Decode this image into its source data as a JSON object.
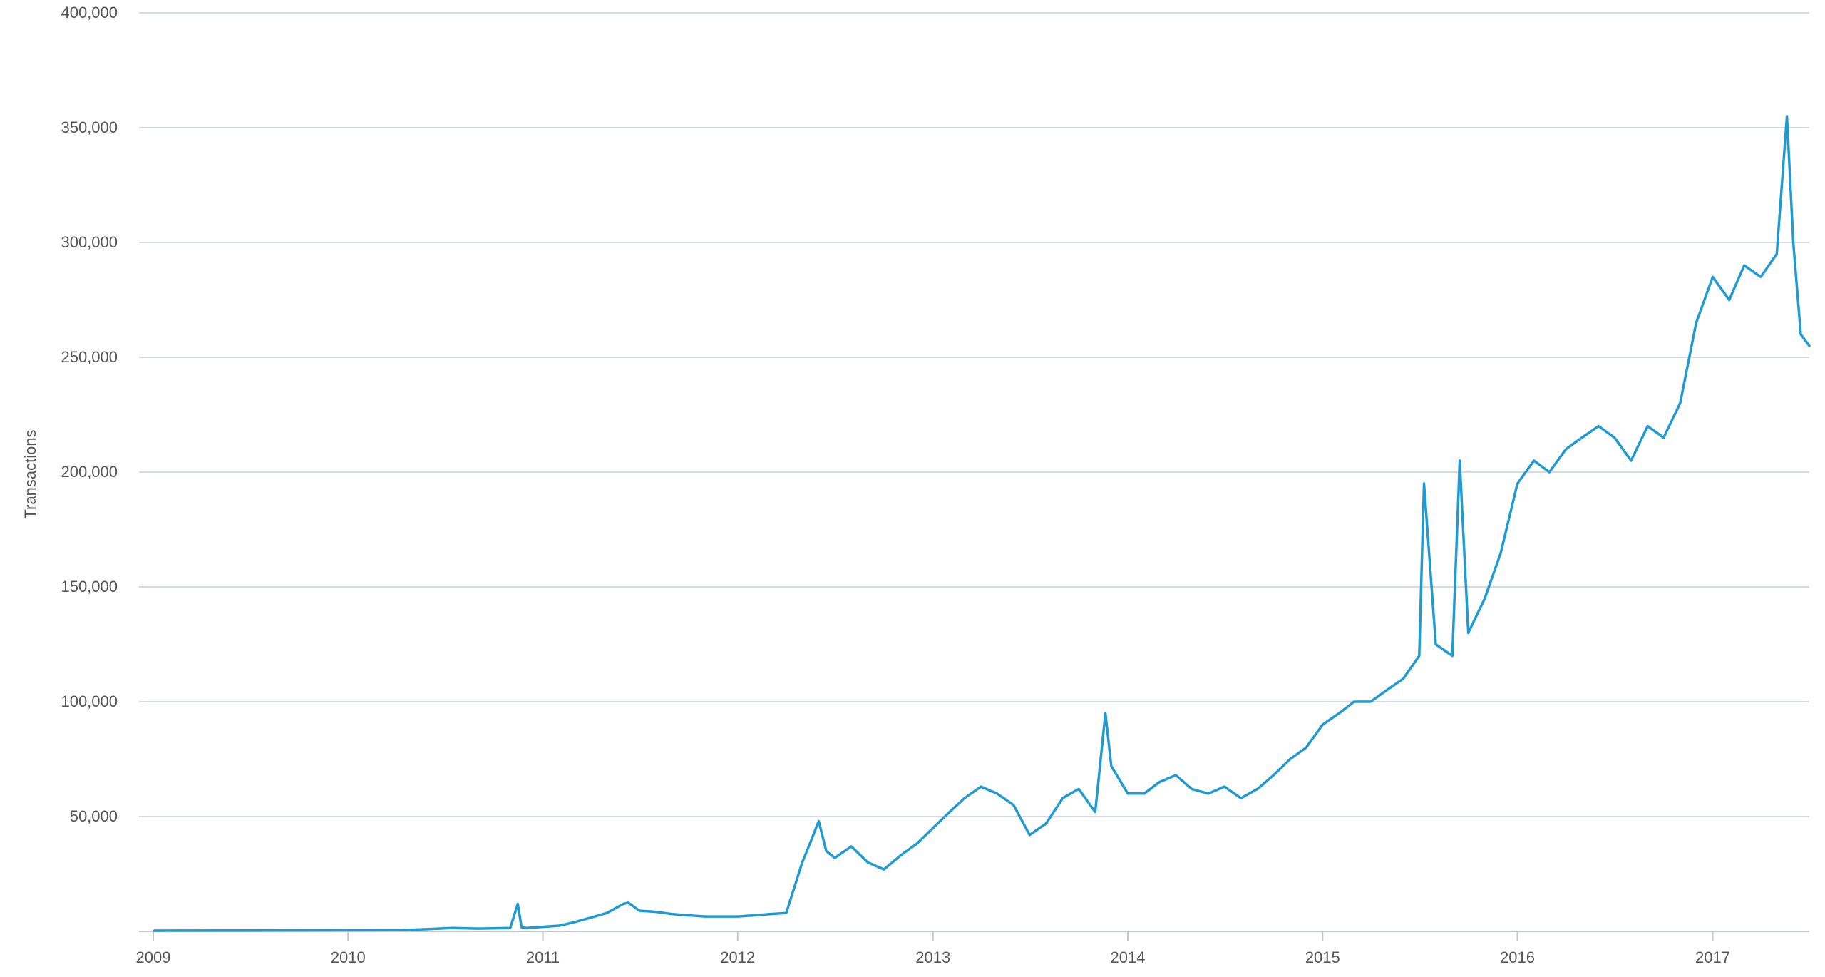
{
  "chart_data": {
    "type": "line",
    "title": "",
    "xlabel": "",
    "ylabel": "Transactions",
    "x_range": [
      "2009-01-01",
      "2017-07-01"
    ],
    "ylim": [
      0,
      400000
    ],
    "y_ticks": [
      {
        "value": 0,
        "label": ""
      },
      {
        "value": 50000,
        "label": "50,000"
      },
      {
        "value": 100000,
        "label": "100,000"
      },
      {
        "value": 150000,
        "label": "150,000"
      },
      {
        "value": 200000,
        "label": "200,000"
      },
      {
        "value": 250000,
        "label": "250,000"
      },
      {
        "value": 300000,
        "label": "300,000"
      },
      {
        "value": 350000,
        "label": "350,000"
      },
      {
        "value": 400000,
        "label": "400,000"
      }
    ],
    "x_ticks": [
      {
        "date": "2009-01-01",
        "label": "2009"
      },
      {
        "date": "2010-01-01",
        "label": "2010"
      },
      {
        "date": "2011-01-01",
        "label": "2011"
      },
      {
        "date": "2012-01-01",
        "label": "2012"
      },
      {
        "date": "2013-01-01",
        "label": "2013"
      },
      {
        "date": "2014-01-01",
        "label": "2014"
      },
      {
        "date": "2015-01-01",
        "label": "2015"
      },
      {
        "date": "2016-01-01",
        "label": "2016"
      },
      {
        "date": "2017-01-01",
        "label": "2017"
      }
    ],
    "grid": true,
    "legend": "none",
    "series": [
      {
        "color": "#1f9bd1",
        "x": [
          "2009-01-03",
          "2009-07-01",
          "2010-01-01",
          "2010-04-15",
          "2010-06-01",
          "2010-07-15",
          "2010-09-01",
          "2010-11-01",
          "2010-11-15",
          "2010-11-22",
          "2010-12-01",
          "2011-01-01",
          "2011-02-01",
          "2011-03-01",
          "2011-04-01",
          "2011-05-01",
          "2011-06-01",
          "2011-06-10",
          "2011-07-01",
          "2011-08-01",
          "2011-09-01",
          "2011-10-01",
          "2011-11-01",
          "2011-12-01",
          "2012-01-01",
          "2012-02-01",
          "2012-03-01",
          "2012-04-01",
          "2012-05-01",
          "2012-05-15",
          "2012-06-01",
          "2012-06-15",
          "2012-07-01",
          "2012-08-01",
          "2012-09-01",
          "2012-10-01",
          "2012-11-01",
          "2012-12-01",
          "2013-01-01",
          "2013-02-01",
          "2013-03-01",
          "2013-04-01",
          "2013-05-01",
          "2013-06-01",
          "2013-07-01",
          "2013-08-01",
          "2013-09-01",
          "2013-10-01",
          "2013-11-01",
          "2013-11-20",
          "2013-12-01",
          "2014-01-01",
          "2014-02-01",
          "2014-03-01",
          "2014-04-01",
          "2014-05-01",
          "2014-06-01",
          "2014-07-01",
          "2014-08-01",
          "2014-09-01",
          "2014-10-01",
          "2014-11-01",
          "2014-12-01",
          "2015-01-01",
          "2015-02-01",
          "2015-03-01",
          "2015-04-01",
          "2015-05-01",
          "2015-06-01",
          "2015-07-01",
          "2015-07-10",
          "2015-08-01",
          "2015-09-01",
          "2015-09-15",
          "2015-10-01",
          "2015-11-01",
          "2015-12-01",
          "2016-01-01",
          "2016-02-01",
          "2016-03-01",
          "2016-04-01",
          "2016-05-01",
          "2016-06-01",
          "2016-07-01",
          "2016-08-01",
          "2016-09-01",
          "2016-10-01",
          "2016-11-01",
          "2016-12-01",
          "2017-01-01",
          "2017-02-01",
          "2017-03-01",
          "2017-04-01",
          "2017-05-01",
          "2017-05-20",
          "2017-06-01",
          "2017-06-15",
          "2017-07-01"
        ],
        "y": [
          300,
          400,
          500,
          600,
          1000,
          1500,
          1200,
          1500,
          12000,
          1800,
          1500,
          2000,
          2500,
          4000,
          6000,
          8000,
          12000,
          12500,
          9000,
          8500,
          7500,
          7000,
          6500,
          6500,
          6500,
          7000,
          7500,
          8000,
          30000,
          38000,
          48000,
          35000,
          32000,
          37000,
          30000,
          27000,
          33000,
          38000,
          45000,
          52000,
          58000,
          63000,
          60000,
          55000,
          42000,
          47000,
          58000,
          62000,
          52000,
          95000,
          72000,
          60000,
          60000,
          65000,
          68000,
          62000,
          60000,
          63000,
          58000,
          62000,
          68000,
          75000,
          80000,
          90000,
          95000,
          100000,
          100000,
          105000,
          110000,
          120000,
          195000,
          125000,
          120000,
          205000,
          130000,
          145000,
          165000,
          195000,
          205000,
          200000,
          210000,
          215000,
          220000,
          215000,
          205000,
          220000,
          215000,
          230000,
          265000,
          285000,
          275000,
          290000,
          285000,
          295000,
          355000,
          300000,
          260000,
          255000
        ]
      }
    ]
  }
}
